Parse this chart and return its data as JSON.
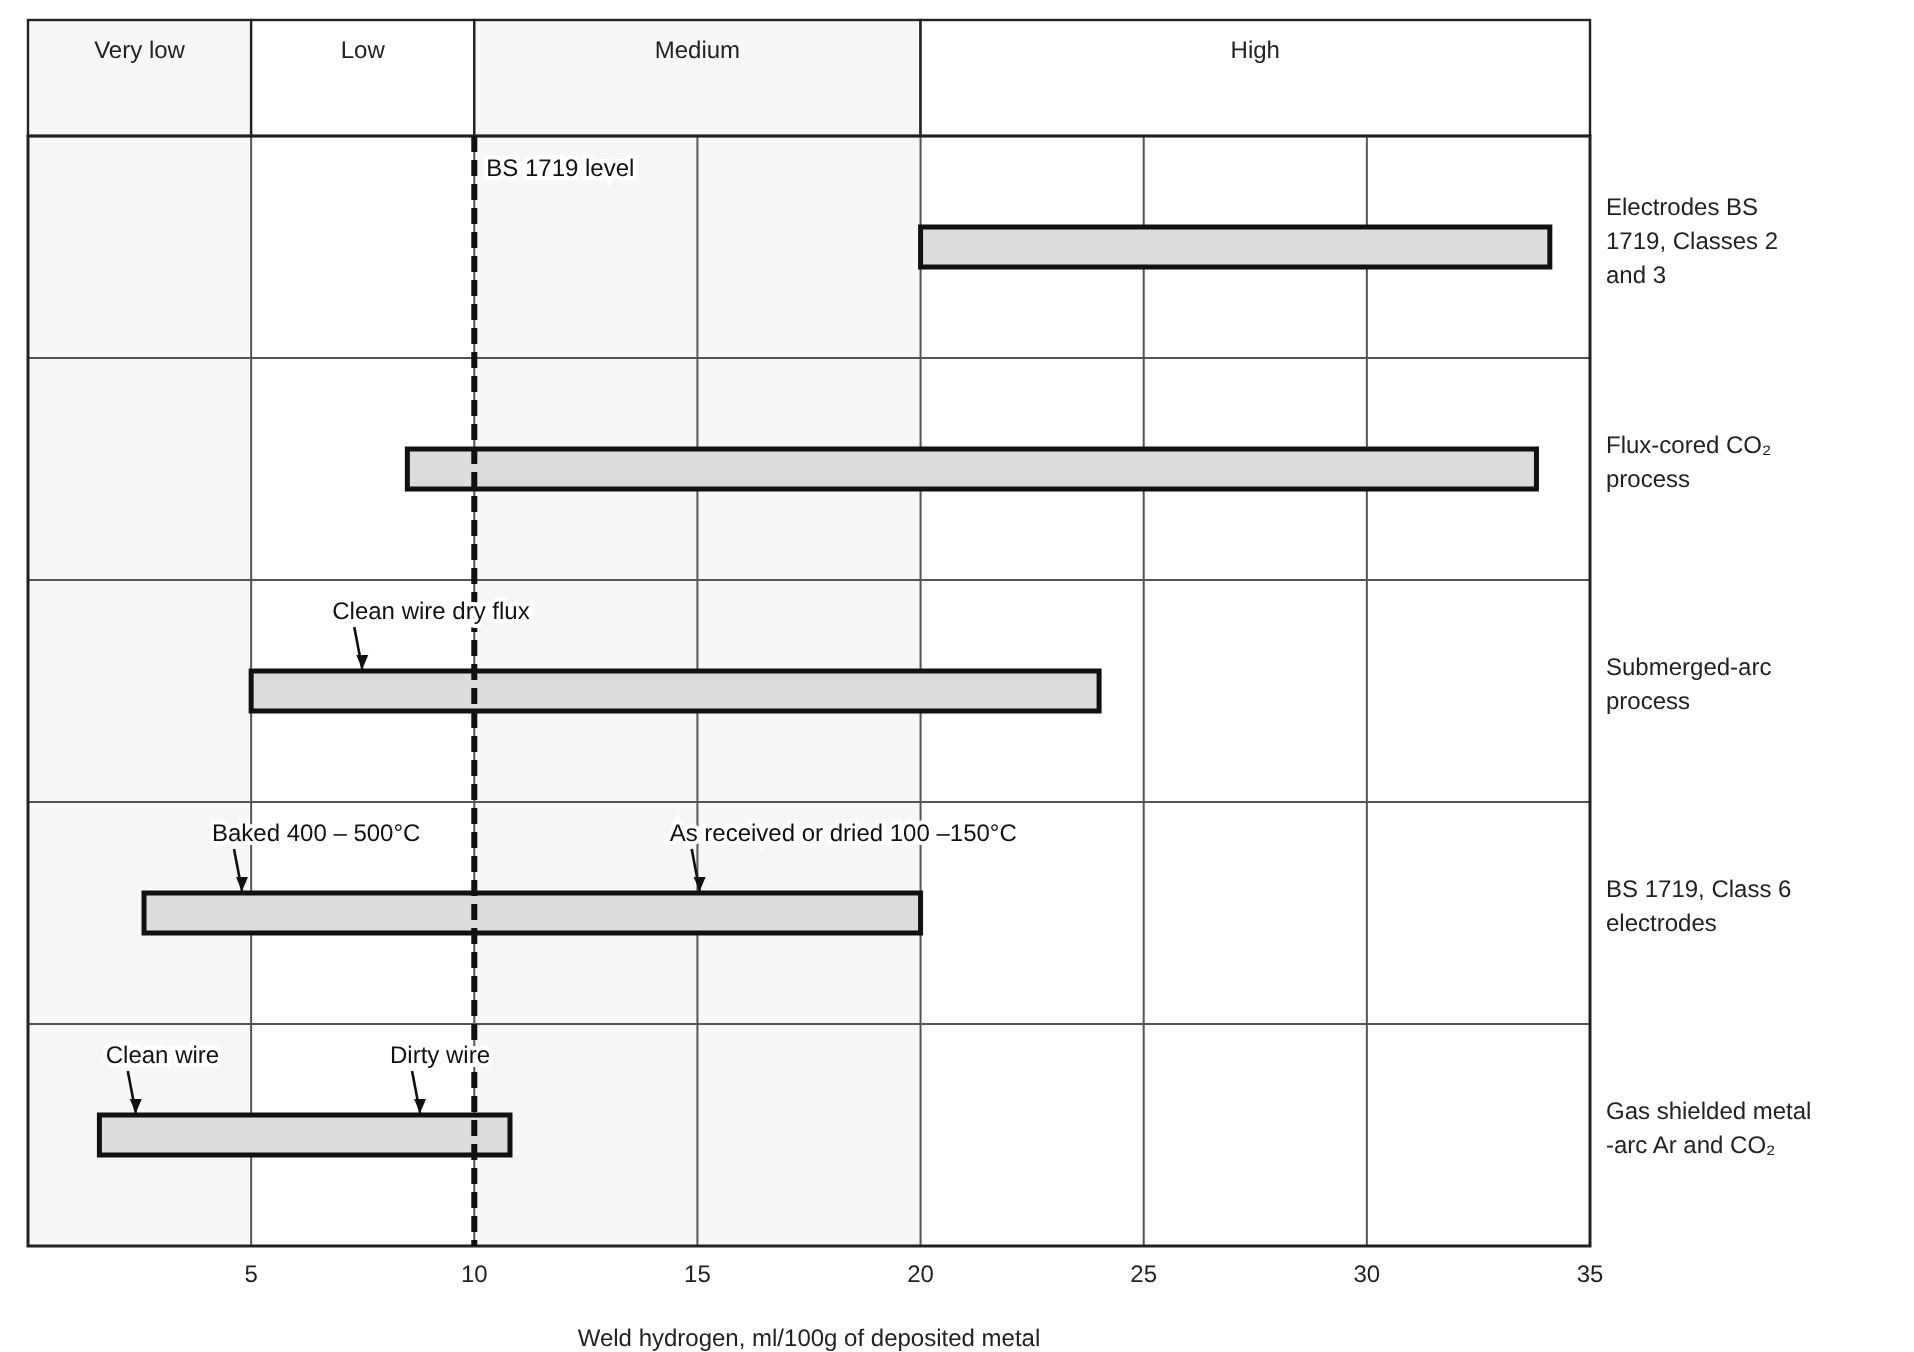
{
  "chart_data": {
    "type": "bar",
    "orientation": "horizontal",
    "xlabel": "Weld hydrogen, ml/100g of deposited metal",
    "categories": [
      "Electrodes BS 1719, Classes 2 and 3",
      "Flux-cored CO₂ process",
      "Submerged-arc process",
      "BS 1719, Class 6 electrodes",
      "Gas shielded metal -arc Ar and CO₂"
    ],
    "base": [
      20,
      8.5,
      5,
      2.6,
      1.6
    ],
    "values": [
      14.1,
      25.3,
      19,
      17.4,
      9.2
    ],
    "color": "#dcdcdc",
    "xlim": [
      0,
      35
    ],
    "xticks": [
      5,
      10,
      15,
      20,
      25,
      30,
      35
    ],
    "grid": "x",
    "bands": [
      {
        "axis": "x",
        "from": 0,
        "to": 5,
        "label": "Very low",
        "color": "#f7f7f7"
      },
      {
        "axis": "x",
        "from": 5,
        "to": 10,
        "label": "Low",
        "color": "#ffffff"
      },
      {
        "axis": "x",
        "from": 10,
        "to": 20,
        "label": "Medium",
        "color": "#f7f7f7"
      },
      {
        "axis": "x",
        "from": 20,
        "to": 35,
        "label": "High",
        "color": "#ffffff"
      }
    ],
    "ref_lines": [
      {
        "axis": "x",
        "value": 10,
        "label": "BS 1719 level",
        "line_style": "dashed"
      }
    ],
    "annotations": [
      "Clean wire dry flux",
      "Baked 400 – 500°C",
      "As received or dried 100 –150°C",
      "Clean wire",
      "Dirty wire"
    ]
  }
}
